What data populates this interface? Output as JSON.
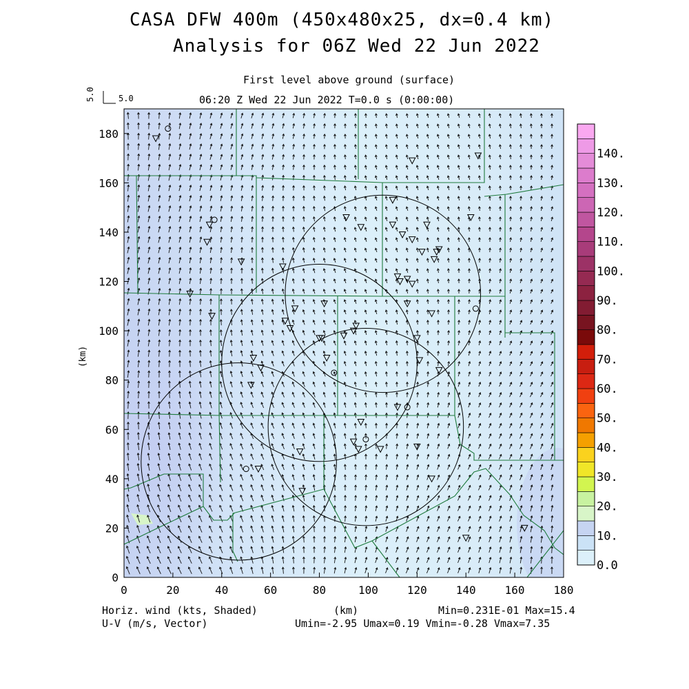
{
  "header": {
    "title_line1": "CASA DFW 400m (450x480x25, dx=0.4 km)",
    "title_line2": "Analysis for 06Z Wed 22 Jun 2022",
    "subtitle_level": "First level above ground (surface)",
    "subtitle_time": "06:20 Z Wed 22 Jun 2022   T=0.0 s (0:00:00)",
    "ref_vector_rotated": "5.0",
    "ref_vector_label": "5.0"
  },
  "footer": {
    "left_line1": "Horiz. wind (kts, Shaded)",
    "left_line2": "U-V (m/s, Vector)",
    "center": "(km)",
    "right_line1": "Min=0.231E-01 Max=15.4",
    "right_line2": "Umin=-2.95 Umax=0.19 Vmin=-0.28 Vmax=7.35"
  },
  "colorbar": {
    "labels": [
      "0.0",
      "10.",
      "20.",
      "30.",
      "40.",
      "50.",
      "60.",
      "70.",
      "80.",
      "90.",
      "100.",
      "110.",
      "120.",
      "130.",
      "140."
    ],
    "colors": [
      "#dcf0fa",
      "#cbe2f6",
      "#c6d4f2",
      "#d8f5c8",
      "#c8f2a0",
      "#d2f550",
      "#f0e628",
      "#fad21e",
      "#f5a000",
      "#f07800",
      "#fa6410",
      "#f04010",
      "#dc2814",
      "#c81e10",
      "#d21e0a",
      "#7a0a0a",
      "#781420",
      "#821c32",
      "#8c2240",
      "#952a52",
      "#9c3266",
      "#a83c7a",
      "#b4468c",
      "#c056a0",
      "#cc66b4",
      "#d470c0",
      "#dc7ccc",
      "#e48cd8",
      "#ee9ae6",
      "#faa8f0"
    ]
  },
  "chart_data": {
    "type": "heatmap",
    "title": "CASA DFW 400m (450x480x25, dx=0.4 km)",
    "subtitle": "Analysis for 06Z Wed 22 Jun 2022",
    "xlabel": "(km)",
    "ylabel": "(km)",
    "xlim": [
      0,
      180
    ],
    "ylim": [
      0,
      190
    ],
    "x_ticks": [
      0,
      20,
      40,
      60,
      80,
      100,
      120,
      140,
      160,
      180
    ],
    "y_ticks": [
      0,
      20,
      40,
      60,
      80,
      100,
      120,
      140,
      160,
      180
    ],
    "shaded_field": "Horiz. wind (kts)",
    "vector_field": "U-V (m/s)",
    "field_min": 0.0231,
    "field_max": 15.4,
    "u_min": -2.95,
    "u_max": 0.19,
    "v_min": -0.28,
    "v_max": 7.35,
    "contour_levels": [
      0,
      10,
      20,
      30,
      40,
      50,
      60,
      70,
      80,
      90,
      100,
      110,
      120,
      130,
      140
    ],
    "radar_range_rings": [
      {
        "cx": 106,
        "cy": 115,
        "r": 40
      },
      {
        "cx": 80,
        "cy": 87,
        "r": 40
      },
      {
        "cx": 99,
        "cy": 61,
        "r": 40
      },
      {
        "cx": 47,
        "cy": 47,
        "r": 40
      }
    ],
    "stations_triangle": [
      [
        13,
        178
      ],
      [
        118,
        169
      ],
      [
        145,
        171
      ],
      [
        35,
        143
      ],
      [
        34,
        136
      ],
      [
        48,
        128
      ],
      [
        65,
        126
      ],
      [
        27,
        115
      ],
      [
        36,
        106
      ],
      [
        66,
        104
      ],
      [
        68,
        101
      ],
      [
        70,
        109
      ],
      [
        81,
        97
      ],
      [
        82,
        111
      ],
      [
        91,
        146
      ],
      [
        97,
        142
      ],
      [
        110,
        153
      ],
      [
        110,
        143
      ],
      [
        114,
        139
      ],
      [
        118,
        137
      ],
      [
        122,
        132
      ],
      [
        124,
        143
      ],
      [
        128,
        132
      ],
      [
        127,
        129
      ],
      [
        129,
        133
      ],
      [
        142,
        146
      ],
      [
        112,
        122
      ],
      [
        113,
        120
      ],
      [
        116,
        121
      ],
      [
        118,
        119
      ],
      [
        116,
        111
      ],
      [
        126,
        107
      ],
      [
        120,
        97
      ],
      [
        121,
        88
      ],
      [
        129,
        84
      ],
      [
        95,
        102
      ],
      [
        94,
        100
      ],
      [
        90,
        98
      ],
      [
        83,
        89
      ],
      [
        80,
        97
      ],
      [
        112,
        69
      ],
      [
        97,
        63
      ],
      [
        94,
        55
      ],
      [
        96,
        52
      ],
      [
        105,
        52
      ],
      [
        120,
        53
      ],
      [
        126,
        40
      ],
      [
        140,
        16
      ],
      [
        164,
        20
      ],
      [
        72,
        51
      ],
      [
        55,
        44
      ],
      [
        73,
        35
      ],
      [
        53,
        89
      ],
      [
        56,
        85
      ],
      [
        52,
        78
      ]
    ],
    "stations_circle": [
      [
        18,
        182
      ],
      [
        37,
        145
      ],
      [
        144,
        109
      ],
      [
        86,
        83
      ],
      [
        99,
        56
      ],
      [
        50,
        44
      ],
      [
        116,
        69
      ]
    ]
  }
}
